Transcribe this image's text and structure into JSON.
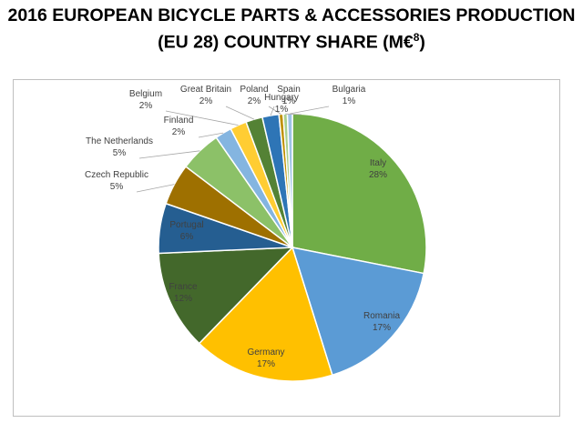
{
  "title_line1": "2016 EUROPEAN BICYCLE PARTS & ACCESSORIES PRODUCTION",
  "title_line2_text": "(EU 28) COUNTRY SHARE (M€",
  "title_line2_sup": "8",
  "title_line2_end": ")",
  "chart_data": {
    "type": "pie",
    "slices": [
      {
        "name": "Italy",
        "label": "28%",
        "value": 28,
        "color": "#70ad47"
      },
      {
        "name": "Romania",
        "label": "17%",
        "value": 17,
        "color": "#5b9bd5"
      },
      {
        "name": "Germany",
        "label": "17%",
        "value": 17,
        "color": "#ffc000"
      },
      {
        "name": "France",
        "label": "12%",
        "value": 12,
        "color": "#43682b"
      },
      {
        "name": "Portugal",
        "label": "6%",
        "value": 6,
        "color": "#255e91"
      },
      {
        "name": "Czech Republic",
        "label": "5%",
        "value": 5,
        "color": "#9e7000"
      },
      {
        "name": "The Netherlands",
        "label": "5%",
        "value": 5,
        "color": "#8cc168"
      },
      {
        "name": "Finland",
        "label": "2%",
        "value": 2,
        "color": "#84b5e0"
      },
      {
        "name": "Belgium",
        "label": "2%",
        "value": 2,
        "color": "#ffcd33"
      },
      {
        "name": "Great Britain",
        "label": "2%",
        "value": 2,
        "color": "#548235"
      },
      {
        "name": "Poland",
        "label": "2%",
        "value": 2,
        "color": "#2e75b6"
      },
      {
        "name": "Spain",
        "label": "1%",
        "value": 0.5,
        "color": "#bf9000"
      },
      {
        "name": "Hungary",
        "label": "1%",
        "value": 0.5,
        "color": "#a9d08e"
      },
      {
        "name": "Bulgaria",
        "label": "1%",
        "value": 0.6,
        "color": "#9dc3e6"
      }
    ]
  }
}
